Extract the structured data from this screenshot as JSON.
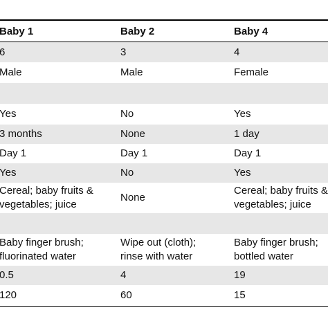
{
  "table": {
    "header": [
      "Baby 1",
      "Baby 2",
      "Baby 4"
    ],
    "rows": [
      [
        "6",
        "3",
        "4"
      ],
      [
        "Male",
        "Male",
        "Female"
      ],
      [
        "Yes",
        "No",
        "Yes"
      ],
      [
        "3 months",
        "None",
        "1 day"
      ],
      [
        "Day 1",
        "Day 1",
        "Day 1"
      ],
      [
        "Yes",
        "No",
        "Yes"
      ],
      [
        [
          "Cereal; baby fruits &",
          "vegetables; juice"
        ],
        "None",
        [
          "Cereal; baby fruits &",
          "vegetables; juice"
        ]
      ],
      [
        [
          "Baby finger brush;",
          "fluorinated water"
        ],
        [
          "Wipe out (cloth);",
          "rinse with water"
        ],
        [
          "Baby finger brush;",
          "bottled water"
        ]
      ],
      [
        "0.5",
        "4",
        "19"
      ],
      [
        "120",
        "60",
        "15"
      ]
    ]
  }
}
